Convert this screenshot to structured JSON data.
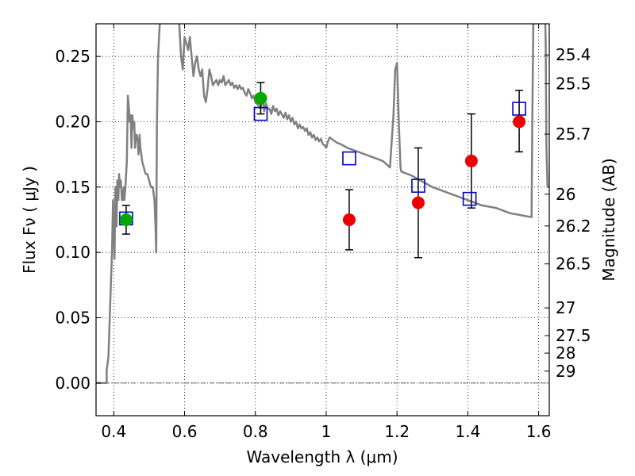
{
  "chart_data": {
    "type": "scatter",
    "xlabel": "Wavelength  λ (μm)",
    "ylabel": "Flux  Fν  ( μJy )",
    "y2label": "Magnitude (AB)",
    "xlim": [
      0.35,
      1.63
    ],
    "ylim": [
      -0.025,
      0.275
    ],
    "grid": true,
    "x_ticks": [
      0.4,
      0.6,
      0.8,
      1.0,
      1.2,
      1.4,
      1.6
    ],
    "x_tick_labels": [
      "0.4",
      "0.6",
      "0.8",
      "1",
      "1.2",
      "1.4",
      "1.6"
    ],
    "y_ticks": [
      0.0,
      0.05,
      0.1,
      0.15,
      0.2,
      0.25
    ],
    "y_tick_labels": [
      "0.00",
      "0.05",
      "0.10",
      "0.15",
      "0.20",
      "0.25"
    ],
    "mag_ticks": [
      {
        "mag": 25.4,
        "label": "25.4"
      },
      {
        "mag": 25.5,
        "label": "25.5"
      },
      {
        "mag": 25.7,
        "label": "25.7"
      },
      {
        "mag": 26.0,
        "label": "26"
      },
      {
        "mag": 26.2,
        "label": "26.2"
      },
      {
        "mag": 26.5,
        "label": "26.5"
      },
      {
        "mag": 27.0,
        "label": "27"
      },
      {
        "mag": 27.5,
        "label": "27.5"
      },
      {
        "mag": 28.0,
        "label": "28"
      },
      {
        "mag": 29.0,
        "label": "29"
      }
    ],
    "series": [
      {
        "kind": "line",
        "color": "#808080",
        "points": [
          [
            0.35,
            0.0
          ],
          [
            0.38,
            0.0
          ],
          [
            0.38,
            0.01
          ],
          [
            0.385,
            0.02
          ],
          [
            0.39,
            0.06
          ],
          [
            0.395,
            0.1
          ],
          [
            0.398,
            0.14
          ],
          [
            0.4,
            0.12
          ],
          [
            0.402,
            0.095
          ],
          [
            0.405,
            0.15
          ],
          [
            0.408,
            0.12
          ],
          [
            0.41,
            0.155
          ],
          [
            0.413,
            0.14
          ],
          [
            0.415,
            0.16
          ],
          [
            0.418,
            0.15
          ],
          [
            0.42,
            0.155
          ],
          [
            0.423,
            0.14
          ],
          [
            0.425,
            0.14
          ],
          [
            0.428,
            0.15
          ],
          [
            0.43,
            0.14
          ],
          [
            0.433,
            0.15
          ],
          [
            0.437,
            0.17
          ],
          [
            0.44,
            0.22
          ],
          [
            0.443,
            0.21
          ],
          [
            0.445,
            0.2
          ],
          [
            0.448,
            0.205
          ],
          [
            0.45,
            0.18
          ],
          [
            0.453,
            0.205
          ],
          [
            0.455,
            0.195
          ],
          [
            0.458,
            0.2
          ],
          [
            0.46,
            0.18
          ],
          [
            0.463,
            0.19
          ],
          [
            0.465,
            0.19
          ],
          [
            0.468,
            0.185
          ],
          [
            0.47,
            0.175
          ],
          [
            0.473,
            0.19
          ],
          [
            0.475,
            0.18
          ],
          [
            0.478,
            0.175
          ],
          [
            0.48,
            0.17
          ],
          [
            0.485,
            0.165
          ],
          [
            0.49,
            0.16
          ],
          [
            0.495,
            0.16
          ],
          [
            0.5,
            0.155
          ],
          [
            0.505,
            0.15
          ],
          [
            0.51,
            0.15
          ],
          [
            0.515,
            0.14
          ],
          [
            0.518,
            0.12
          ],
          [
            0.52,
            0.1
          ],
          [
            0.522,
            0.2
          ],
          [
            0.525,
            0.25
          ],
          [
            0.53,
            0.275
          ],
          [
            0.535,
            0.285
          ],
          [
            0.58,
            0.285
          ],
          [
            0.585,
            0.275
          ],
          [
            0.59,
            0.25
          ],
          [
            0.595,
            0.24
          ],
          [
            0.6,
            0.265
          ],
          [
            0.605,
            0.26
          ],
          [
            0.61,
            0.255
          ],
          [
            0.615,
            0.265
          ],
          [
            0.62,
            0.25
          ],
          [
            0.625,
            0.235
          ],
          [
            0.63,
            0.245
          ],
          [
            0.635,
            0.25
          ],
          [
            0.64,
            0.24
          ],
          [
            0.645,
            0.235
          ],
          [
            0.65,
            0.24
          ],
          [
            0.655,
            0.22
          ],
          [
            0.66,
            0.215
          ],
          [
            0.665,
            0.225
          ],
          [
            0.67,
            0.24
          ],
          [
            0.675,
            0.235
          ],
          [
            0.68,
            0.228
          ],
          [
            0.685,
            0.23
          ],
          [
            0.69,
            0.232
          ],
          [
            0.695,
            0.228
          ],
          [
            0.7,
            0.232
          ],
          [
            0.705,
            0.23
          ],
          [
            0.71,
            0.235
          ],
          [
            0.715,
            0.228
          ],
          [
            0.72,
            0.23
          ],
          [
            0.725,
            0.232
          ],
          [
            0.73,
            0.228
          ],
          [
            0.735,
            0.23
          ],
          [
            0.74,
            0.226
          ],
          [
            0.745,
            0.228
          ],
          [
            0.75,
            0.225
          ],
          [
            0.755,
            0.228
          ],
          [
            0.76,
            0.225
          ],
          [
            0.765,
            0.226
          ],
          [
            0.77,
            0.222
          ],
          [
            0.775,
            0.22
          ],
          [
            0.78,
            0.225
          ],
          [
            0.785,
            0.222
          ],
          [
            0.79,
            0.218
          ],
          [
            0.795,
            0.22
          ],
          [
            0.8,
            0.215
          ],
          [
            0.81,
            0.212
          ],
          [
            0.815,
            0.21
          ],
          [
            0.82,
            0.22
          ],
          [
            0.825,
            0.208
          ],
          [
            0.83,
            0.214
          ],
          [
            0.835,
            0.21
          ],
          [
            0.84,
            0.21
          ],
          [
            0.845,
            0.206
          ],
          [
            0.85,
            0.212
          ],
          [
            0.855,
            0.208
          ],
          [
            0.86,
            0.21
          ],
          [
            0.865,
            0.205
          ],
          [
            0.87,
            0.208
          ],
          [
            0.88,
            0.203
          ],
          [
            0.885,
            0.207
          ],
          [
            0.89,
            0.202
          ],
          [
            0.895,
            0.205
          ],
          [
            0.9,
            0.2
          ],
          [
            0.905,
            0.203
          ],
          [
            0.91,
            0.198
          ],
          [
            0.915,
            0.2
          ],
          [
            0.92,
            0.195
          ],
          [
            0.925,
            0.198
          ],
          [
            0.93,
            0.195
          ],
          [
            0.935,
            0.196
          ],
          [
            0.94,
            0.193
          ],
          [
            0.945,
            0.195
          ],
          [
            0.95,
            0.19
          ],
          [
            0.955,
            0.192
          ],
          [
            0.96,
            0.188
          ],
          [
            0.965,
            0.19
          ],
          [
            0.97,
            0.186
          ],
          [
            0.975,
            0.188
          ],
          [
            0.98,
            0.185
          ],
          [
            0.985,
            0.187
          ],
          [
            0.99,
            0.183
          ],
          [
            0.995,
            0.182
          ],
          [
            1.0,
            0.18
          ],
          [
            1.005,
            0.185
          ],
          [
            1.01,
            0.188
          ],
          [
            1.02,
            0.186
          ],
          [
            1.03,
            0.184
          ],
          [
            1.04,
            0.183
          ],
          [
            1.06,
            0.18
          ],
          [
            1.08,
            0.178
          ],
          [
            1.1,
            0.176
          ],
          [
            1.12,
            0.174
          ],
          [
            1.14,
            0.172
          ],
          [
            1.16,
            0.17
          ],
          [
            1.18,
            0.165
          ],
          [
            1.19,
            0.205
          ],
          [
            1.195,
            0.24
          ],
          [
            1.2,
            0.245
          ],
          [
            1.205,
            0.2
          ],
          [
            1.21,
            0.165
          ],
          [
            1.212,
            0.162
          ],
          [
            1.22,
            0.161
          ],
          [
            1.24,
            0.159
          ],
          [
            1.26,
            0.156
          ],
          [
            1.28,
            0.153
          ],
          [
            1.3,
            0.15
          ],
          [
            1.32,
            0.148
          ],
          [
            1.34,
            0.146
          ],
          [
            1.36,
            0.144
          ],
          [
            1.38,
            0.142
          ],
          [
            1.4,
            0.14
          ],
          [
            1.42,
            0.138
          ],
          [
            1.44,
            0.136
          ],
          [
            1.46,
            0.135
          ],
          [
            1.48,
            0.134
          ],
          [
            1.5,
            0.132
          ],
          [
            1.52,
            0.13
          ],
          [
            1.54,
            0.129
          ],
          [
            1.56,
            0.128
          ],
          [
            1.58,
            0.127
          ],
          [
            1.582,
            0.2
          ],
          [
            1.585,
            0.275
          ],
          [
            1.588,
            0.285
          ],
          [
            1.618,
            0.285
          ],
          [
            1.62,
            0.26
          ],
          [
            1.622,
            0.18
          ],
          [
            1.625,
            0.15
          ],
          [
            1.63,
            0.15
          ]
        ]
      },
      {
        "kind": "errorbars",
        "color": "#000000",
        "points": [
          {
            "x": 0.435,
            "y": 0.125,
            "ylo": 0.114,
            "yhi": 0.136
          },
          {
            "x": 0.815,
            "y": 0.218,
            "ylo": 0.206,
            "yhi": 0.23
          },
          {
            "x": 1.065,
            "y": 0.125,
            "ylo": 0.102,
            "yhi": 0.148
          },
          {
            "x": 1.26,
            "y": 0.138,
            "ylo": 0.096,
            "yhi": 0.18
          },
          {
            "x": 1.41,
            "y": 0.17,
            "ylo": 0.134,
            "yhi": 0.206
          },
          {
            "x": 1.545,
            "y": 0.2,
            "ylo": 0.177,
            "yhi": 0.224
          }
        ]
      },
      {
        "kind": "points",
        "marker": "square",
        "color": "#0000cc",
        "points": [
          [
            0.435,
            0.126
          ],
          [
            0.815,
            0.206
          ],
          [
            1.065,
            0.172
          ],
          [
            1.26,
            0.151
          ],
          [
            1.405,
            0.141
          ],
          [
            1.545,
            0.21
          ]
        ]
      },
      {
        "kind": "points",
        "marker": "circle",
        "color": "#00aa00",
        "points": [
          [
            0.435,
            0.125
          ],
          [
            0.815,
            0.218
          ]
        ]
      },
      {
        "kind": "points",
        "marker": "circle",
        "color": "#ee0000",
        "points": [
          [
            1.065,
            0.125
          ],
          [
            1.26,
            0.138
          ],
          [
            1.41,
            0.17
          ],
          [
            1.545,
            0.2
          ]
        ]
      }
    ]
  }
}
